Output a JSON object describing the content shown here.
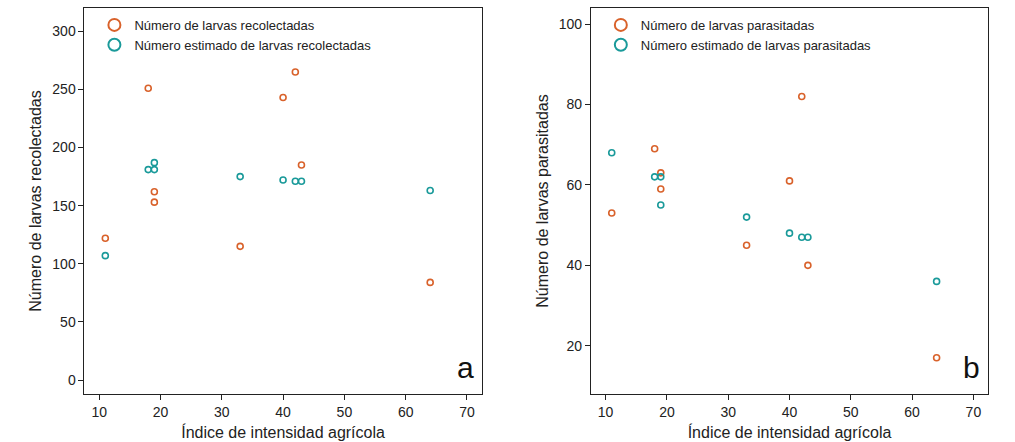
{
  "chart_data": [
    {
      "type": "scatter",
      "x_label": "Índice de intensidad agrícola",
      "y_label": "Número de larvas recolectadas",
      "annotations": [
        "a"
      ],
      "legend": "upper left",
      "grid": false,
      "marker": "circle-open",
      "xlim": [
        7.6,
        72.4
      ],
      "xticks": [
        10,
        20,
        30,
        40,
        50,
        60,
        70
      ],
      "ylim": [
        -12,
        320
      ],
      "yticks": [
        0,
        50,
        100,
        150,
        200,
        250,
        300
      ],
      "series": [
        {
          "name": "Número de larvas recolectadas",
          "color": "#d9622b",
          "x": [
            11,
            18,
            19,
            19,
            33,
            40,
            42,
            43,
            64
          ],
          "values": [
            122,
            251,
            162,
            153,
            115,
            243,
            265,
            185,
            84
          ]
        },
        {
          "name": "Número estimado de larvas recolectadas",
          "color": "#1a9a9a",
          "x": [
            11,
            18,
            19,
            19,
            33,
            40,
            42,
            43,
            64
          ],
          "values": [
            107,
            181,
            187,
            181,
            175,
            172,
            171,
            171,
            163
          ]
        }
      ]
    },
    {
      "type": "scatter",
      "x_label": "Índice de intensidad agrícola",
      "y_label": "Número de larvas parasitadas",
      "annotations": [
        "b"
      ],
      "legend": "upper left",
      "grid": false,
      "marker": "circle-open",
      "xlim": [
        7.6,
        72.4
      ],
      "xticks": [
        10,
        20,
        30,
        40,
        50,
        60,
        70
      ],
      "ylim": [
        8,
        104
      ],
      "yticks": [
        20,
        40,
        60,
        80,
        100
      ],
      "series": [
        {
          "name": "Número de larvas parasitadas",
          "color": "#d9622b",
          "x": [
            11,
            18,
            19,
            19,
            33,
            40,
            42,
            43,
            64
          ],
          "values": [
            53,
            69,
            63,
            59,
            45,
            61,
            82,
            40,
            17
          ]
        },
        {
          "name": "Número estimado de larvas parasitadas",
          "color": "#1a9a9a",
          "x": [
            11,
            18,
            19,
            19,
            33,
            40,
            42,
            43,
            64
          ],
          "values": [
            68,
            62,
            62,
            55,
            52,
            48,
            47,
            47,
            36
          ]
        }
      ]
    }
  ]
}
